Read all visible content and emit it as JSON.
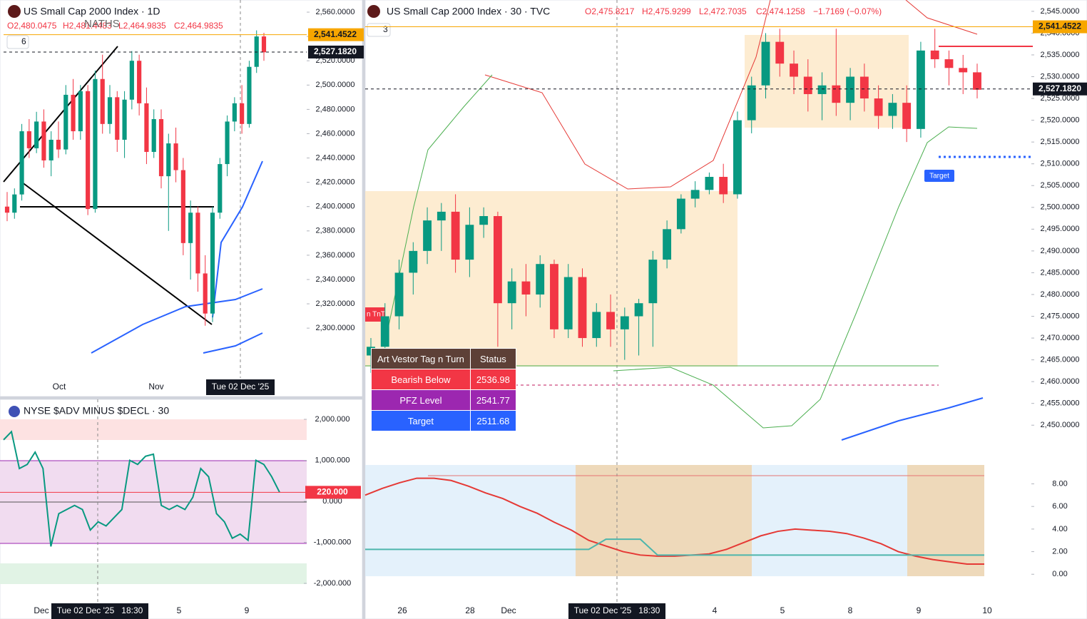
{
  "chart_data": [
    {
      "type": "candlestick",
      "title": "US Small Cap 2000 Index · 1D",
      "ohlc": [
        "O2,480.0475",
        "H2,481.4483",
        "L2,464.9835",
        "C2,464.9835"
      ],
      "candles": [
        [
          2400,
          2412,
          2388,
          2395
        ],
        [
          2395,
          2415,
          2390,
          2410
        ],
        [
          2410,
          2468,
          2405,
          2462
        ],
        [
          2462,
          2472,
          2440,
          2448
        ],
        [
          2448,
          2478,
          2444,
          2470
        ],
        [
          2470,
          2480,
          2432,
          2438
        ],
        [
          2438,
          2462,
          2425,
          2455
        ],
        [
          2455,
          2470,
          2440,
          2447
        ],
        [
          2447,
          2500,
          2443,
          2492
        ],
        [
          2492,
          2505,
          2455,
          2462
        ],
        [
          2462,
          2500,
          2455,
          2495
        ],
        [
          2495,
          2500,
          2393,
          2398
        ],
        [
          2398,
          2512,
          2395,
          2505
        ],
        [
          2505,
          2525,
          2460,
          2468
        ],
        [
          2468,
          2500,
          2460,
          2490
        ],
        [
          2490,
          2495,
          2445,
          2455
        ],
        [
          2455,
          2495,
          2440,
          2488
        ],
        [
          2488,
          2528,
          2480,
          2520
        ],
        [
          2520,
          2525,
          2475,
          2485
        ],
        [
          2485,
          2498,
          2435,
          2445
        ],
        [
          2445,
          2480,
          2440,
          2472
        ],
        [
          2472,
          2480,
          2415,
          2425
        ],
        [
          2425,
          2460,
          2380,
          2452
        ],
        [
          2452,
          2465,
          2420,
          2430
        ],
        [
          2430,
          2440,
          2360,
          2370
        ],
        [
          2370,
          2405,
          2340,
          2395
        ],
        [
          2395,
          2400,
          2330,
          2345
        ],
        [
          2345,
          2360,
          2302,
          2312
        ],
        [
          2312,
          2400,
          2305,
          2395
        ],
        [
          2395,
          2440,
          2390,
          2435
        ],
        [
          2435,
          2475,
          2425,
          2470
        ],
        [
          2470,
          2490,
          2462,
          2485
        ],
        [
          2485,
          2500,
          2460,
          2468
        ],
        [
          2468,
          2520,
          2465,
          2515
        ],
        [
          2515,
          2545,
          2510,
          2540
        ],
        [
          2540,
          2543,
          2520,
          2527
        ]
      ],
      "up_color": "#089981",
      "down_color": "#f23645",
      "ylim": [
        2259,
        2570
      ],
      "yticks": [
        {
          "value": 2300,
          "label": "2,300.0000"
        },
        {
          "value": 2320,
          "label": "2,320.0000"
        },
        {
          "value": 2340,
          "label": "2,340.0000"
        },
        {
          "value": 2360,
          "label": "2,360.0000"
        },
        {
          "value": 2380,
          "label": "2,380.0000"
        },
        {
          "value": 2400,
          "label": "2,400.0000"
        },
        {
          "value": 2420,
          "label": "2,420.0000"
        },
        {
          "value": 2440,
          "label": "2,440.0000"
        },
        {
          "value": 2460,
          "label": "2,460.0000"
        },
        {
          "value": 2480,
          "label": "2,480.0000"
        },
        {
          "value": 2500,
          "label": "2,500.0000"
        },
        {
          "value": 2520,
          "label": "2,520.0000"
        },
        {
          "value": 2540,
          "label": "2,540.0000"
        },
        {
          "value": 2560,
          "label": "2,560.0000"
        }
      ],
      "price_labels": [
        {
          "value": 2541.4522,
          "label": "2,541.4522",
          "color": "#f7a600"
        },
        {
          "value": 2527.182,
          "label": "2,527.1820",
          "color": "#131722"
        }
      ],
      "xtick_labels": [
        "Oct",
        "Nov"
      ],
      "crosshair_label": "Tue 02 Dec '25"
    },
    {
      "type": "line",
      "title": "NYSE $ADV MINUS $DECL · 30",
      "series": [
        {
          "color": "#089981",
          "values": [
            1500,
            1700,
            800,
            900,
            1200,
            800,
            -1100,
            -300,
            -200,
            -100,
            -200,
            -700,
            -500,
            -600,
            -400,
            -200,
            1000,
            900,
            1100,
            1150,
            -100,
            -200,
            -100,
            -200,
            100,
            800,
            600,
            -300,
            -500,
            -900,
            -800,
            -950,
            1000,
            900,
            600,
            220
          ]
        }
      ],
      "ylim": [
        -2522,
        2487
      ],
      "yticks": [
        {
          "value": 2000,
          "label": "2,000.000"
        },
        {
          "value": 1000,
          "label": "1,000.000"
        },
        {
          "value": 0,
          "label": "0.000"
        },
        {
          "value": -1000,
          "label": "-1,000.000"
        },
        {
          "value": -2000,
          "label": "-2,000.000"
        }
      ],
      "price_labels": [
        {
          "value": 220,
          "label": "220.000",
          "color": "#f23645"
        }
      ],
      "xtick_labels": [
        "Dec",
        "5",
        "9"
      ],
      "crosshair_label": "Tue 02 Dec '25   18:30"
    },
    {
      "type": "candlestick",
      "title": "US Small Cap 2000 Index · 30 · TVC",
      "ohlc": [
        "O2,475.8217",
        "H2,475.9299",
        "L2,472.7035",
        "C2,474.1258",
        "−1.7169 (−0.07%)"
      ],
      "candles": [
        [
          2466,
          2470,
          2462,
          2468
        ],
        [
          2468,
          2478,
          2464,
          2475
        ],
        [
          2475,
          2488,
          2472,
          2485
        ],
        [
          2485,
          2492,
          2480,
          2490
        ],
        [
          2490,
          2500,
          2487,
          2497
        ],
        [
          2497,
          2501,
          2490,
          2499
        ],
        [
          2499,
          2503,
          2485,
          2488
        ],
        [
          2488,
          2500,
          2484,
          2496
        ],
        [
          2496,
          2500,
          2493,
          2498
        ],
        [
          2498,
          2499,
          2468,
          2478
        ],
        [
          2478,
          2486,
          2472,
          2483
        ],
        [
          2483,
          2487,
          2475,
          2480
        ],
        [
          2480,
          2489,
          2477,
          2487
        ],
        [
          2487,
          2488,
          2470,
          2472
        ],
        [
          2472,
          2487,
          2470,
          2484
        ],
        [
          2484,
          2486,
          2468,
          2470
        ],
        [
          2470,
          2478,
          2468,
          2476
        ],
        [
          2476,
          2480,
          2468,
          2472
        ],
        [
          2472,
          2477,
          2465,
          2475
        ],
        [
          2475,
          2479,
          2466,
          2478
        ],
        [
          2478,
          2490,
          2468,
          2488
        ],
        [
          2488,
          2497,
          2486,
          2495
        ],
        [
          2495,
          2503,
          2494,
          2502
        ],
        [
          2502,
          2506,
          2500,
          2504
        ],
        [
          2504,
          2508,
          2503,
          2507
        ],
        [
          2507,
          2510,
          2501,
          2503
        ],
        [
          2503,
          2522,
          2502,
          2520
        ],
        [
          2520,
          2530,
          2517,
          2528
        ],
        [
          2528,
          2540,
          2525,
          2538
        ],
        [
          2538,
          2541,
          2530,
          2533
        ],
        [
          2533,
          2536,
          2526,
          2530
        ],
        [
          2530,
          2534,
          2522,
          2526
        ],
        [
          2526,
          2531,
          2520,
          2528
        ],
        [
          2528,
          2541,
          2521,
          2524
        ],
        [
          2524,
          2532,
          2520,
          2530
        ],
        [
          2530,
          2533,
          2522,
          2525
        ],
        [
          2525,
          2528,
          2518,
          2521
        ],
        [
          2521,
          2526,
          2518,
          2524
        ],
        [
          2524,
          2528,
          2515,
          2518
        ],
        [
          2518,
          2538,
          2516,
          2536
        ],
        [
          2536,
          2541,
          2532,
          2534
        ],
        [
          2534,
          2536,
          2528,
          2532
        ],
        [
          2532,
          2535,
          2526,
          2531
        ],
        [
          2531,
          2533,
          2525,
          2527
        ]
      ],
      "up_color": "#089981",
      "down_color": "#f23645",
      "ylim": [
        2446.6,
        2547.6
      ],
      "yticks": [
        {
          "value": 2450,
          "label": "2,450.0000"
        },
        {
          "value": 2455,
          "label": "2,455.0000"
        },
        {
          "value": 2460,
          "label": "2,460.0000"
        },
        {
          "value": 2465,
          "label": "2,465.0000"
        },
        {
          "value": 2470,
          "label": "2,470.0000"
        },
        {
          "value": 2475,
          "label": "2,475.0000"
        },
        {
          "value": 2480,
          "label": "2,480.0000"
        },
        {
          "value": 2485,
          "label": "2,485.0000"
        },
        {
          "value": 2490,
          "label": "2,490.0000"
        },
        {
          "value": 2495,
          "label": "2,495.0000"
        },
        {
          "value": 2500,
          "label": "2,500.0000"
        },
        {
          "value": 2505,
          "label": "2,505.0000"
        },
        {
          "value": 2510,
          "label": "2,510.0000"
        },
        {
          "value": 2515,
          "label": "2,515.0000"
        },
        {
          "value": 2520,
          "label": "2,520.0000"
        },
        {
          "value": 2525,
          "label": "2,525.0000"
        },
        {
          "value": 2530,
          "label": "2,530.0000"
        },
        {
          "value": 2535,
          "label": "2,535.0000"
        },
        {
          "value": 2540,
          "label": "2,540.0000"
        },
        {
          "value": 2545,
          "label": "2,545.0000"
        }
      ],
      "price_labels": [
        {
          "value": 2541.4522,
          "label": "2,541.4522",
          "color": "#f7a600"
        },
        {
          "value": 2527.182,
          "label": "2,527.1820",
          "color": "#131722"
        }
      ],
      "xtick_labels": [
        "26",
        "28",
        "Dec",
        "4",
        "5",
        "8",
        "9",
        "10"
      ],
      "crosshair_label": "Tue 02 Dec '25   18:30"
    },
    {
      "type": "line",
      "series": [
        {
          "color": "#e53935",
          "values": [
            7.0,
            7.6,
            8.1,
            8.5,
            8.5,
            8.3,
            7.8,
            7.2,
            6.7,
            6.0,
            5.4,
            4.6,
            3.9,
            3.0,
            2.5,
            2.0,
            1.7,
            1.6,
            1.6,
            1.7,
            1.8,
            2.2,
            2.8,
            3.4,
            3.8,
            4.0,
            3.9,
            3.8,
            3.6,
            3.2,
            2.7,
            2.0,
            1.6,
            1.3,
            1.1,
            0.9,
            0.9
          ]
        },
        {
          "color": "#4db6ac",
          "values": [
            2.2,
            2.2,
            2.2,
            2.2,
            2.2,
            2.2,
            2.2,
            2.2,
            2.2,
            2.2,
            2.2,
            2.2,
            2.2,
            2.2,
            3.1,
            3.1,
            3.1,
            1.7,
            1.7,
            1.7,
            1.7,
            1.7,
            1.7,
            1.7,
            1.7,
            1.7,
            1.7,
            1.7,
            1.7,
            1.7,
            1.7,
            1.7,
            1.7,
            1.7,
            1.7,
            1.7,
            1.7
          ]
        }
      ],
      "ylim": [
        -0.3,
        9.8
      ],
      "yticks": [
        {
          "value": 8,
          "label": "8.00"
        },
        {
          "value": 6,
          "label": "6.00"
        },
        {
          "value": 4,
          "label": "4.00"
        },
        {
          "value": 2,
          "label": "2.00"
        },
        {
          "value": 0,
          "label": "0.00"
        }
      ]
    }
  ],
  "indicator_table": {
    "header": [
      "Art Vestor Tag n Turn",
      "Status"
    ],
    "rows": [
      [
        "Bearish Below",
        "2536.98"
      ],
      [
        "PFZ Level",
        "2541.77"
      ],
      [
        "Target",
        "2511.68"
      ]
    ]
  },
  "annotations": {
    "watermark": "NATHS",
    "left_badge": "6",
    "right_badge": "3",
    "target_tag": "Target",
    "tnt_tag": "n TnT"
  }
}
